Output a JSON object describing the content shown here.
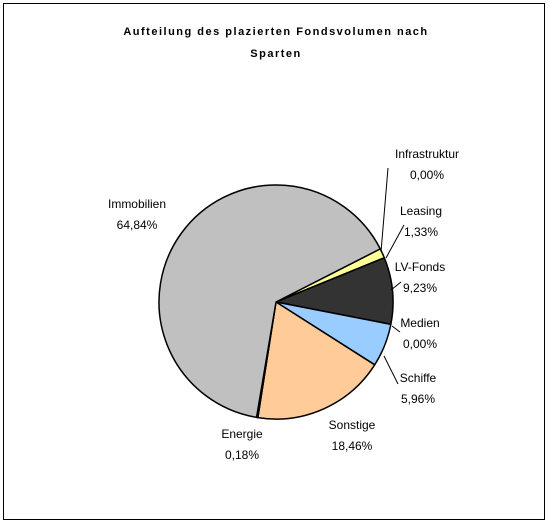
{
  "chart_data": {
    "type": "pie",
    "title": [
      "Aufteilung des plazierten Fondsvolumen nach",
      "Sparten"
    ],
    "categories": [
      "Infrastruktur",
      "Leasing",
      "LV-Fonds",
      "Medien",
      "Schiffe",
      "Sonstige",
      "Energie",
      "Immobilien"
    ],
    "values": [
      0.0,
      1.33,
      9.23,
      0.0,
      5.96,
      18.46,
      0.18,
      64.84
    ],
    "value_labels": [
      "0,00%",
      "1,33%",
      "9,23%",
      "0,00%",
      "5,96%",
      "18,46%",
      "0,18%",
      "64,84%"
    ],
    "colors": [
      "#ffffff",
      "#ffff99",
      "#333333",
      "#ffffff",
      "#99ccff",
      "#ffcc99",
      "#333333",
      "#c0c0c0"
    ]
  }
}
